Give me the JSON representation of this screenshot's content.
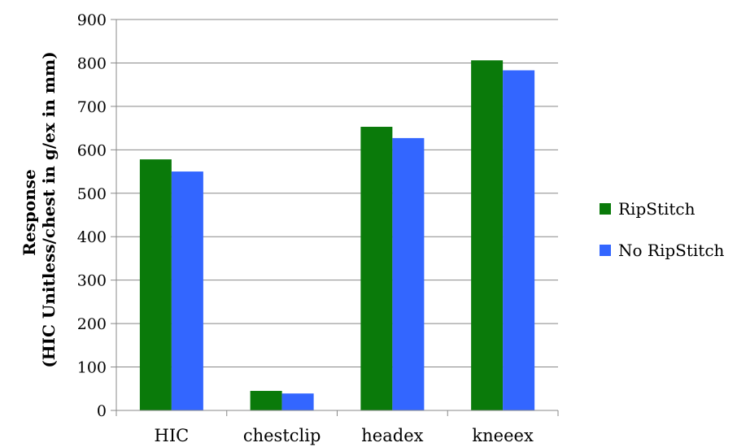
{
  "chart_data": {
    "type": "bar",
    "title": "",
    "xlabel": "",
    "ylabel_line1": "Response",
    "ylabel_line2": "(HIC Unitless/chest in g/ex in mm)",
    "categories": [
      "HIC",
      "chestclip",
      "headex",
      "kneeex"
    ],
    "series": [
      {
        "name": "RipStitch",
        "color": "#0a7a0a",
        "values": [
          578,
          45,
          653,
          806
        ]
      },
      {
        "name": "No RipStitch",
        "color": "#3366ff",
        "values": [
          550,
          39,
          627,
          783
        ]
      }
    ],
    "ylim": [
      0,
      900
    ],
    "yticks": [
      "0",
      "100",
      "200",
      "300",
      "400",
      "500",
      "600",
      "700",
      "800",
      "900"
    ],
    "grid": true,
    "legend_position": "right"
  }
}
